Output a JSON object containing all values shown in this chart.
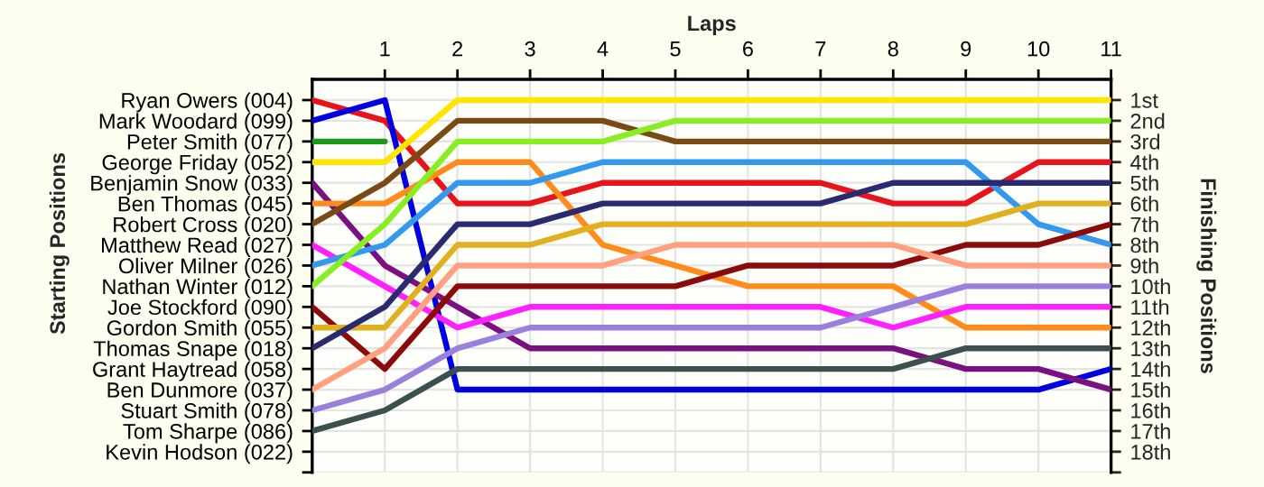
{
  "chart_data": {
    "type": "line",
    "xlabel": "Laps",
    "annotations": [
      "Starting Positions"
    ],
    "y2label": "Finishing Positions",
    "x": [
      0,
      1,
      2,
      3,
      4,
      5,
      6,
      7,
      8,
      9,
      10,
      11
    ],
    "xlim": [
      0,
      11
    ],
    "xticks": [
      1,
      2,
      3,
      4,
      5,
      6,
      7,
      8,
      9,
      10,
      11
    ],
    "y_categories": [
      "Ryan Owers (004)",
      "Mark Woodard (099)",
      "Peter Smith (077)",
      "George Friday (052)",
      "Benjamin Snow (033)",
      "Ben Thomas (045)",
      "Robert Cross (020)",
      "Matthew Read (027)",
      "Oliver Milner (026)",
      "Nathan Winter (012)",
      "Joe Stockford (090)",
      "Gordon Smith (055)",
      "Thomas Snape (018)",
      "Grant Haytread (058)",
      "Ben Dunmore (037)",
      "Stuart Smith (078)",
      "Tom Sharpe (086)",
      "Kevin Hodson (022)",
      null
    ],
    "y2lim": [
      19,
      0
    ],
    "y2ticks": [
      {
        "value": 1,
        "label": "1st"
      },
      {
        "value": 2,
        "label": "2nd"
      },
      {
        "value": 3,
        "label": "3rd"
      },
      {
        "value": 4,
        "label": "4th"
      },
      {
        "value": 5,
        "label": "5th"
      },
      {
        "value": 6,
        "label": "6th"
      },
      {
        "value": 7,
        "label": "7th"
      },
      {
        "value": 8,
        "label": "8th"
      },
      {
        "value": 9,
        "label": "9th"
      },
      {
        "value": 10,
        "label": "10th"
      },
      {
        "value": 11,
        "label": "11th"
      },
      {
        "value": 12,
        "label": "12th"
      },
      {
        "value": 13,
        "label": "13th"
      },
      {
        "value": 14,
        "label": "14th"
      },
      {
        "value": 15,
        "label": "15th"
      },
      {
        "value": 16,
        "label": "16th"
      },
      {
        "value": 17,
        "label": "17th"
      },
      {
        "value": 18,
        "label": "18th"
      },
      {
        "value": 19,
        "label": null
      }
    ],
    "grid": true,
    "marker": "none",
    "line_style": "solid",
    "series": [
      {
        "color": "#e8141c",
        "axis": "y2",
        "values": [
          1,
          2,
          6,
          6,
          5,
          5,
          5,
          5,
          6,
          6,
          4,
          4
        ]
      },
      {
        "color": "#0000e0",
        "axis": "y2",
        "values": [
          2,
          1,
          15,
          15,
          15,
          15,
          15,
          15,
          15,
          15,
          15,
          14
        ]
      },
      {
        "color": "#1a9a1a",
        "axis": "y2",
        "values": [
          3,
          3,
          null,
          null,
          null,
          null,
          null,
          null,
          null,
          null,
          null,
          null
        ]
      },
      {
        "color": "#ffe600",
        "axis": "y2",
        "values": [
          4,
          4,
          1,
          1,
          1,
          1,
          1,
          1,
          1,
          1,
          1,
          1
        ]
      },
      {
        "color": "#7b1080",
        "axis": "y2",
        "values": [
          5,
          9,
          11,
          13,
          13,
          13,
          13,
          13,
          13,
          14,
          14,
          15
        ]
      },
      {
        "color": "#ff8c1a",
        "axis": "y2",
        "values": [
          6,
          6,
          4,
          4,
          8,
          9,
          10,
          10,
          10,
          12,
          12,
          12
        ]
      },
      {
        "color": "#7a4a14",
        "axis": "y2",
        "values": [
          7,
          5,
          2,
          2,
          2,
          3,
          3,
          3,
          3,
          3,
          3,
          3
        ]
      },
      {
        "color": "#ff20ff",
        "axis": "y2",
        "values": [
          8,
          10,
          12,
          11,
          11,
          11,
          11,
          11,
          12,
          11,
          11,
          11
        ]
      },
      {
        "color": "#3399ee",
        "axis": "y2",
        "values": [
          9,
          8,
          5,
          5,
          4,
          4,
          4,
          4,
          4,
          4,
          7,
          8
        ]
      },
      {
        "color": "#88ee22",
        "axis": "y2",
        "values": [
          10,
          7,
          3,
          3,
          3,
          2,
          2,
          2,
          2,
          2,
          2,
          2
        ]
      },
      {
        "color": "#8b0a0a",
        "axis": "y2",
        "values": [
          11,
          14,
          10,
          10,
          10,
          10,
          9,
          9,
          9,
          8,
          8,
          7
        ]
      },
      {
        "color": "#e0b020",
        "axis": "y2",
        "values": [
          12,
          12,
          8,
          8,
          7,
          7,
          7,
          7,
          7,
          7,
          6,
          6
        ]
      },
      {
        "color": "#2a2a70",
        "axis": "y2",
        "values": [
          13,
          11,
          7,
          7,
          6,
          6,
          6,
          6,
          5,
          5,
          5,
          5
        ]
      },
      {
        "color": "#ffa080",
        "axis": "y2",
        "values": [
          15,
          13,
          9,
          9,
          9,
          8,
          8,
          8,
          8,
          9,
          9,
          9
        ]
      },
      {
        "color": "#9a80dd",
        "axis": "y2",
        "values": [
          16,
          15,
          13,
          12,
          12,
          12,
          12,
          12,
          11,
          10,
          10,
          10
        ]
      },
      {
        "color": "#3c5050",
        "axis": "y2",
        "values": [
          17,
          16,
          14,
          14,
          14,
          14,
          14,
          14,
          14,
          13,
          13,
          13
        ]
      }
    ]
  }
}
